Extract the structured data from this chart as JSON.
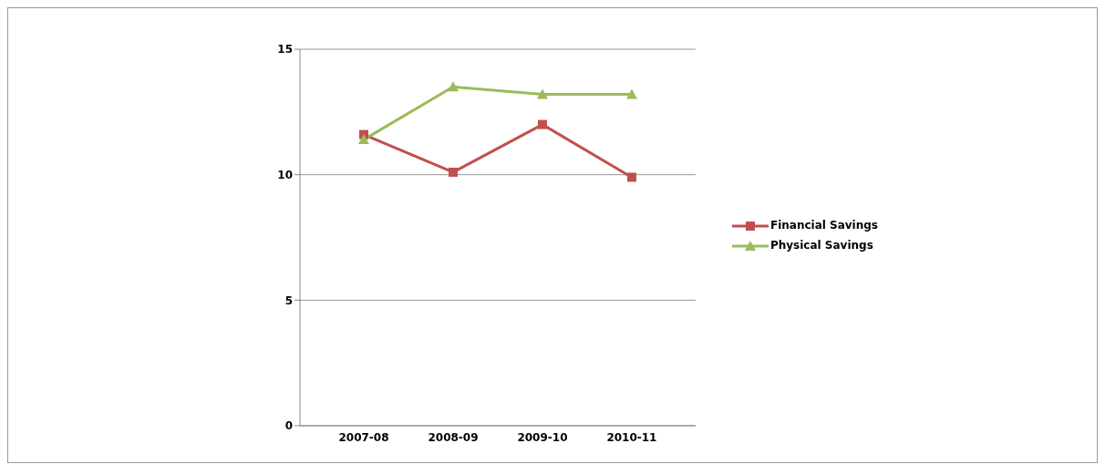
{
  "chart_data": {
    "type": "line",
    "categories": [
      "2007-08",
      "2008-09",
      "2009-10",
      "2010-11"
    ],
    "series": [
      {
        "name": "Financial Savings",
        "color": "#c0504d",
        "marker": "square",
        "values": [
          11.6,
          10.1,
          12.0,
          9.9
        ]
      },
      {
        "name": "Physical Savings",
        "color": "#9bbb59",
        "marker": "triangle",
        "values": [
          11.4,
          13.5,
          13.2,
          13.2
        ]
      }
    ],
    "ylim": [
      0,
      15
    ],
    "yticks": [
      0,
      5,
      10,
      15
    ],
    "grid": "y",
    "legend": "right"
  }
}
